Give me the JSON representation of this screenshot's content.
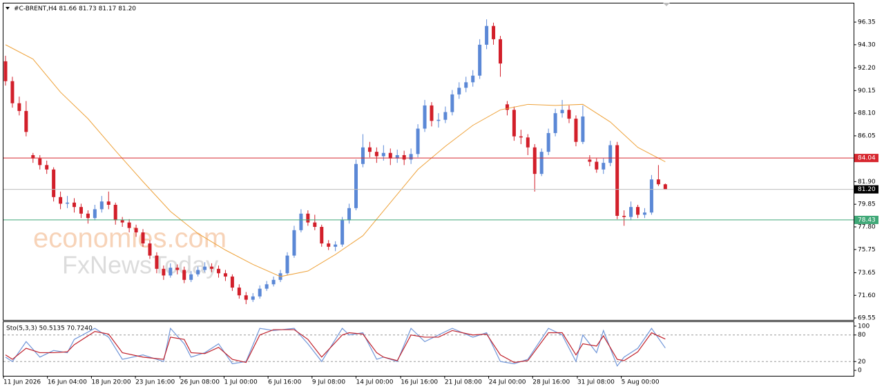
{
  "watermark": [
    "economies.com",
    "FxNewsToday"
  ],
  "chart_data": [
    {
      "type": "candlestick",
      "title": "#C-BRENT,H4",
      "last_bar_labels": [
        "81.66",
        "81.73",
        "81.17",
        "81.20"
      ],
      "up_color": "#5b88d6",
      "down_color": "#d21f2a",
      "xlim": [
        -0.3,
        123.4
      ],
      "ylim": [
        69.43,
        98.04
      ],
      "yticks": [
        96.35,
        {
          "value": 94.3,
          "label": "94.30"
        },
        {
          "value": 92.2,
          "label": "92.20"
        },
        90.15,
        {
          "value": 88.1,
          "label": "88.10"
        },
        86.05,
        {
          "value": 81.9,
          "label": "81.90"
        },
        79.85,
        {
          "value": 77.8,
          "label": "77.80"
        },
        75.75,
        73.65,
        {
          "value": 71.6,
          "label": "71.60"
        },
        69.55
      ],
      "open": [
        92.8,
        91,
        89,
        88.3,
        84.3,
        84,
        83.4,
        83,
        80.5,
        79.9,
        80,
        79.6,
        79,
        78.6,
        79.4,
        80.1,
        79.8,
        78.4,
        78.2,
        77.7,
        77.3,
        76.3,
        75.2,
        74,
        73.4,
        74.1,
        73.9,
        73,
        73.5,
        73.9,
        74.2,
        74,
        73.6,
        73.3,
        72.3,
        71.6,
        71.2,
        71.5,
        72.2,
        72.6,
        73,
        73.6,
        75.2,
        77.5,
        79,
        78.2,
        77.8,
        76.3,
        76,
        76.2,
        78.4,
        79.5,
        83.5,
        85,
        84.6,
        84.2,
        84.5,
        84,
        84.3,
        83.9,
        84.4,
        86.7,
        88.8,
        87.4,
        87.5,
        88.2,
        89.8,
        90.4,
        90.9,
        91.5,
        94.3,
        96,
        94.8,
        88.9,
        88.4,
        86,
        85.9,
        85,
        82.6,
        84.6,
        86.3,
        88.1,
        88.4,
        87.6,
        85.5,
        83.9,
        83.7,
        83,
        83.6,
        85.2,
        78.8,
        78.7,
        79.6,
        78.9,
        79.1,
        82.1,
        81.66
      ],
      "high": [
        93.3,
        91.4,
        89.6,
        89.2,
        84.5,
        84.3,
        83.8,
        83.2,
        81,
        80.6,
        80.4,
        79.9,
        79.3,
        79.8,
        80.6,
        81,
        80,
        78.7,
        78.5,
        78,
        77.6,
        76.6,
        75.5,
        74.3,
        74.5,
        74.4,
        74.2,
        73.8,
        74.2,
        74.6,
        74.5,
        74.3,
        73.9,
        73.5,
        72.6,
        71.9,
        71.8,
        72.5,
        72.9,
        73.3,
        73.9,
        75.5,
        77.9,
        79.4,
        79.3,
        78.9,
        78,
        76.6,
        76.5,
        78.7,
        79.9,
        83.9,
        86.2,
        85.5,
        85,
        85.2,
        84.9,
        84.8,
        84.7,
        84.9,
        87.1,
        89.3,
        89.1,
        88.1,
        88.7,
        90.2,
        90.9,
        91.4,
        92,
        94.8,
        96.6,
        96.3,
        95.1,
        89.2,
        88.7,
        86.6,
        86.2,
        85.3,
        84.9,
        86.7,
        88.5,
        89.3,
        88.8,
        87.9,
        88.8,
        84.3,
        84,
        84,
        85.6,
        85.5,
        79.3,
        80.1,
        79.8,
        79.5,
        82.5,
        83.4,
        81.73
      ],
      "low": [
        90.6,
        88.6,
        87.9,
        86,
        83.6,
        83,
        82.6,
        80.1,
        79.4,
        79.5,
        79.1,
        78.6,
        78.1,
        78.4,
        79.1,
        79.4,
        78,
        77.8,
        77.3,
        76.9,
        76,
        74.9,
        73.6,
        73,
        73.2,
        73.5,
        72.7,
        72.8,
        73.3,
        73.7,
        73.7,
        73.2,
        72.9,
        72,
        71.3,
        70.8,
        71,
        71.3,
        72,
        72.4,
        72.8,
        73.4,
        75,
        77.3,
        77.9,
        77.5,
        76,
        75.7,
        75.6,
        76,
        78.1,
        79.3,
        83.2,
        84.1,
        83.6,
        83.8,
        83.4,
        83.6,
        83.4,
        83.5,
        84.1,
        86.4,
        86.9,
        86.8,
        87.2,
        87.9,
        89.4,
        90,
        90.5,
        91.2,
        93.9,
        94.3,
        91.4,
        87.9,
        85.6,
        85.3,
        84.3,
        81,
        82.4,
        84.3,
        86,
        87.7,
        87.2,
        85.1,
        85.3,
        83.3,
        82.7,
        82.6,
        83.3,
        78.5,
        77.9,
        78.4,
        78.6,
        78.6,
        78.9,
        81.5,
        81.17
      ],
      "close": [
        91,
        89,
        88.3,
        86.4,
        84,
        83.4,
        83,
        80.5,
        79.9,
        80,
        79.6,
        79,
        78.6,
        79.4,
        80.1,
        79.8,
        78.4,
        78.2,
        77.7,
        77.3,
        76.3,
        75.2,
        74,
        73.4,
        74.1,
        73.9,
        73,
        73.5,
        73.9,
        74.2,
        74,
        73.6,
        73.3,
        72.3,
        71.6,
        71.2,
        71.5,
        72.2,
        72.6,
        73,
        73.6,
        75.2,
        77.5,
        79,
        78.2,
        77.8,
        76.3,
        76,
        76.2,
        78.4,
        79.5,
        83.5,
        85,
        84.6,
        84.2,
        84.5,
        84,
        84.3,
        83.9,
        84.4,
        86.7,
        88.8,
        87.4,
        87.5,
        88.2,
        89.8,
        90.4,
        90.9,
        91.5,
        94.3,
        96,
        94.8,
        92.6,
        88.4,
        86,
        85.9,
        85,
        82.6,
        84.6,
        86.3,
        88.1,
        88.4,
        87.6,
        85.5,
        87.8,
        83.7,
        83,
        83.6,
        85.2,
        78.8,
        78.7,
        79.6,
        78.9,
        79.1,
        82.1,
        81.66,
        81.2
      ],
      "lines": [
        {
          "color": "#eea23a",
          "x": [
            0,
            4,
            8,
            12,
            16,
            20,
            24,
            28,
            32,
            36,
            40,
            44,
            48,
            52,
            56,
            60,
            64,
            68,
            72,
            76,
            80,
            84,
            88,
            92,
            96
          ],
          "values": [
            94.3,
            93,
            90,
            87.6,
            84.7,
            81.9,
            79.2,
            77.2,
            75.7,
            74.4,
            73.3,
            73.8,
            75.3,
            77,
            80,
            83,
            85.1,
            87,
            88.4,
            88.9,
            88.8,
            88.9,
            87.3,
            85,
            83.7
          ]
        }
      ],
      "levels": [
        {
          "value": 84.04,
          "color": "#d7262e"
        },
        {
          "value": 81.2,
          "label": "81.20",
          "color": "#bdbdbd",
          "box_color": "#000000"
        },
        {
          "value": 78.43,
          "color": "#3fa877"
        }
      ]
    },
    {
      "type": "line",
      "title": "Sto(5,3,3) 50.5135 70.7240",
      "xlim": [
        -0.3,
        123.4
      ],
      "ylim": [
        -12.3,
        109.2
      ],
      "yticks": [
        0,
        20,
        80,
        100
      ],
      "levels": [
        20,
        80
      ],
      "xticks": [
        {
          "value": -0.3,
          "label": "11 Jun 2026"
        },
        {
          "value": 6.1,
          "label": "16 Jun 04:00"
        },
        {
          "value": 12.5,
          "label": "18 Jun 20:00"
        },
        {
          "value": 18.9,
          "label": "23 Jun 16:00"
        },
        {
          "value": 25.4,
          "label": "26 Jun 08:00"
        },
        {
          "value": 31.8,
          "label": "1 Jul 00:00"
        },
        {
          "value": 38.2,
          "label": "6 Jul 16:00"
        },
        {
          "value": 44.6,
          "label": "9 Jul 08:00"
        },
        {
          "value": 51,
          "label": "14 Jul 00:00"
        },
        {
          "value": 57.5,
          "label": "16 Jul 16:00"
        },
        {
          "value": 63.9,
          "label": "21 Jul 08:00"
        },
        {
          "value": 70.3,
          "label": "24 Jul 00:00"
        },
        {
          "value": 76.7,
          "label": "28 Jul 16:00"
        },
        {
          "value": 83.2,
          "label": "31 Jul 08:00"
        },
        {
          "value": 89.6,
          "label": "5 Aug 00:00"
        }
      ],
      "series": [
        {
          "color": "#6f95d8",
          "x": [
            0,
            1,
            3,
            5,
            7,
            9,
            10,
            13,
            15,
            17,
            20,
            23,
            24,
            26,
            27,
            29,
            31,
            33,
            35,
            37,
            39,
            42,
            44,
            46,
            49,
            50,
            52,
            54,
            55,
            57,
            59,
            61,
            63,
            65,
            68,
            70,
            72,
            74,
            76,
            79,
            81,
            83,
            84,
            86,
            87,
            89,
            90,
            92,
            94,
            96
          ],
          "values": [
            30,
            20,
            65,
            30,
            45,
            40,
            70,
            95,
            75,
            25,
            35,
            20,
            95,
            60,
            30,
            40,
            60,
            15,
            20,
            95,
            90,
            95,
            60,
            20,
            95,
            80,
            85,
            25,
            30,
            20,
            95,
            65,
            80,
            95,
            75,
            85,
            20,
            15,
            25,
            95,
            80,
            20,
            80,
            40,
            90,
            10,
            30,
            50,
            95,
            50.5
          ]
        },
        {
          "color": "#c0202a",
          "x": [
            0,
            1,
            3,
            5,
            7,
            9,
            10,
            13,
            15,
            17,
            20,
            23,
            24,
            26,
            27,
            29,
            31,
            33,
            35,
            37,
            39,
            42,
            44,
            46,
            49,
            50,
            52,
            54,
            55,
            57,
            59,
            61,
            63,
            65,
            68,
            70,
            72,
            74,
            76,
            79,
            81,
            83,
            84,
            86,
            87,
            89,
            90,
            92,
            94,
            96
          ],
          "values": [
            35,
            25,
            50,
            40,
            40,
            42,
            58,
            88,
            82,
            40,
            30,
            25,
            75,
            70,
            40,
            38,
            52,
            25,
            18,
            80,
            92,
            92,
            70,
            30,
            80,
            85,
            82,
            40,
            30,
            22,
            80,
            75,
            75,
            90,
            80,
            82,
            35,
            18,
            22,
            85,
            85,
            35,
            60,
            55,
            78,
            25,
            22,
            42,
            85,
            70.7
          ]
        }
      ]
    }
  ]
}
